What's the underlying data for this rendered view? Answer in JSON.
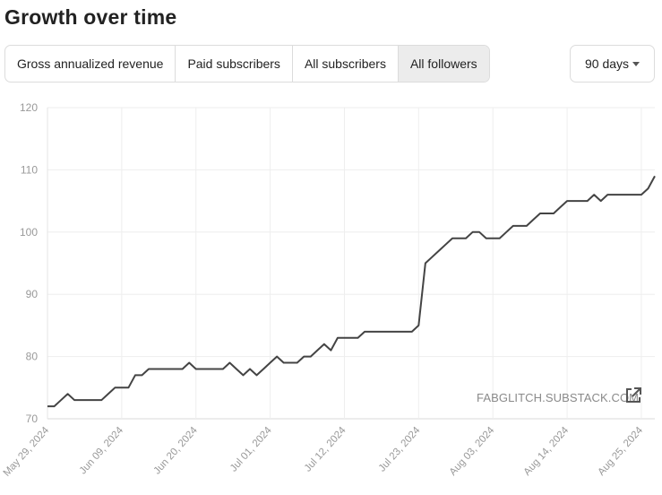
{
  "page": {
    "title": "Growth over time"
  },
  "tabs": [
    {
      "label": "Gross annualized revenue",
      "active": false
    },
    {
      "label": "Paid subscribers",
      "active": false
    },
    {
      "label": "All subscribers",
      "active": false
    },
    {
      "label": "All followers",
      "active": true
    }
  ],
  "range": {
    "label": "90 days"
  },
  "watermark": {
    "text": "FABGLITCH.SUBSTACK.COM",
    "icon": "external-link-icon"
  },
  "colors": {
    "line": "#444444",
    "grid": "#eeeeee",
    "axis_text": "#999999",
    "active_tab": "#ececec"
  },
  "chart_data": {
    "type": "line",
    "ylim": [
      70,
      120
    ],
    "yticks": [
      "70",
      "80",
      "90",
      "100",
      "110",
      "120"
    ],
    "xticks": [
      "May 29, 2024",
      "Jun 09, 2024",
      "Jun 20, 2024",
      "Jul 01, 2024",
      "Jul 12, 2024",
      "Jul 23, 2024",
      "Aug 03, 2024",
      "Aug 14, 2024",
      "Aug 25, 2024"
    ],
    "grid": true,
    "series": [
      {
        "x": [
          "2024-05-29",
          "2024-05-30",
          "2024-05-31",
          "2024-06-01",
          "2024-06-02",
          "2024-06-03",
          "2024-06-04",
          "2024-06-05",
          "2024-06-06",
          "2024-06-07",
          "2024-06-08",
          "2024-06-09",
          "2024-06-10",
          "2024-06-11",
          "2024-06-12",
          "2024-06-13",
          "2024-06-14",
          "2024-06-15",
          "2024-06-16",
          "2024-06-17",
          "2024-06-18",
          "2024-06-19",
          "2024-06-20",
          "2024-06-21",
          "2024-06-22",
          "2024-06-23",
          "2024-06-24",
          "2024-06-25",
          "2024-06-26",
          "2024-06-27",
          "2024-06-28",
          "2024-06-29",
          "2024-06-30",
          "2024-07-01",
          "2024-07-02",
          "2024-07-03",
          "2024-07-04",
          "2024-07-05",
          "2024-07-06",
          "2024-07-07",
          "2024-07-08",
          "2024-07-09",
          "2024-07-10",
          "2024-07-11",
          "2024-07-12",
          "2024-07-13",
          "2024-07-14",
          "2024-07-15",
          "2024-07-16",
          "2024-07-17",
          "2024-07-18",
          "2024-07-19",
          "2024-07-20",
          "2024-07-21",
          "2024-07-22",
          "2024-07-23",
          "2024-07-24",
          "2024-07-25",
          "2024-07-26",
          "2024-07-27",
          "2024-07-28",
          "2024-07-29",
          "2024-07-30",
          "2024-07-31",
          "2024-08-01",
          "2024-08-02",
          "2024-08-03",
          "2024-08-04",
          "2024-08-05",
          "2024-08-06",
          "2024-08-07",
          "2024-08-08",
          "2024-08-09",
          "2024-08-10",
          "2024-08-11",
          "2024-08-12",
          "2024-08-13",
          "2024-08-14",
          "2024-08-15",
          "2024-08-16",
          "2024-08-17",
          "2024-08-18",
          "2024-08-19",
          "2024-08-20",
          "2024-08-21",
          "2024-08-22",
          "2024-08-23",
          "2024-08-24",
          "2024-08-25",
          "2024-08-26",
          "2024-08-27"
        ],
        "values": [
          72,
          72,
          73,
          74,
          73,
          73,
          73,
          73,
          73,
          74,
          75,
          75,
          75,
          77,
          77,
          78,
          78,
          78,
          78,
          78,
          78,
          79,
          78,
          78,
          78,
          78,
          78,
          79,
          78,
          77,
          78,
          77,
          78,
          79,
          80,
          79,
          79,
          79,
          80,
          80,
          81,
          82,
          81,
          83,
          83,
          83,
          83,
          84,
          84,
          84,
          84,
          84,
          84,
          84,
          84,
          85,
          95,
          96,
          97,
          98,
          99,
          99,
          99,
          100,
          100,
          99,
          99,
          99,
          100,
          101,
          101,
          101,
          102,
          103,
          103,
          103,
          104,
          105,
          105,
          105,
          105,
          106,
          105,
          106,
          106,
          106,
          106,
          106,
          106,
          107,
          109
        ]
      }
    ]
  }
}
